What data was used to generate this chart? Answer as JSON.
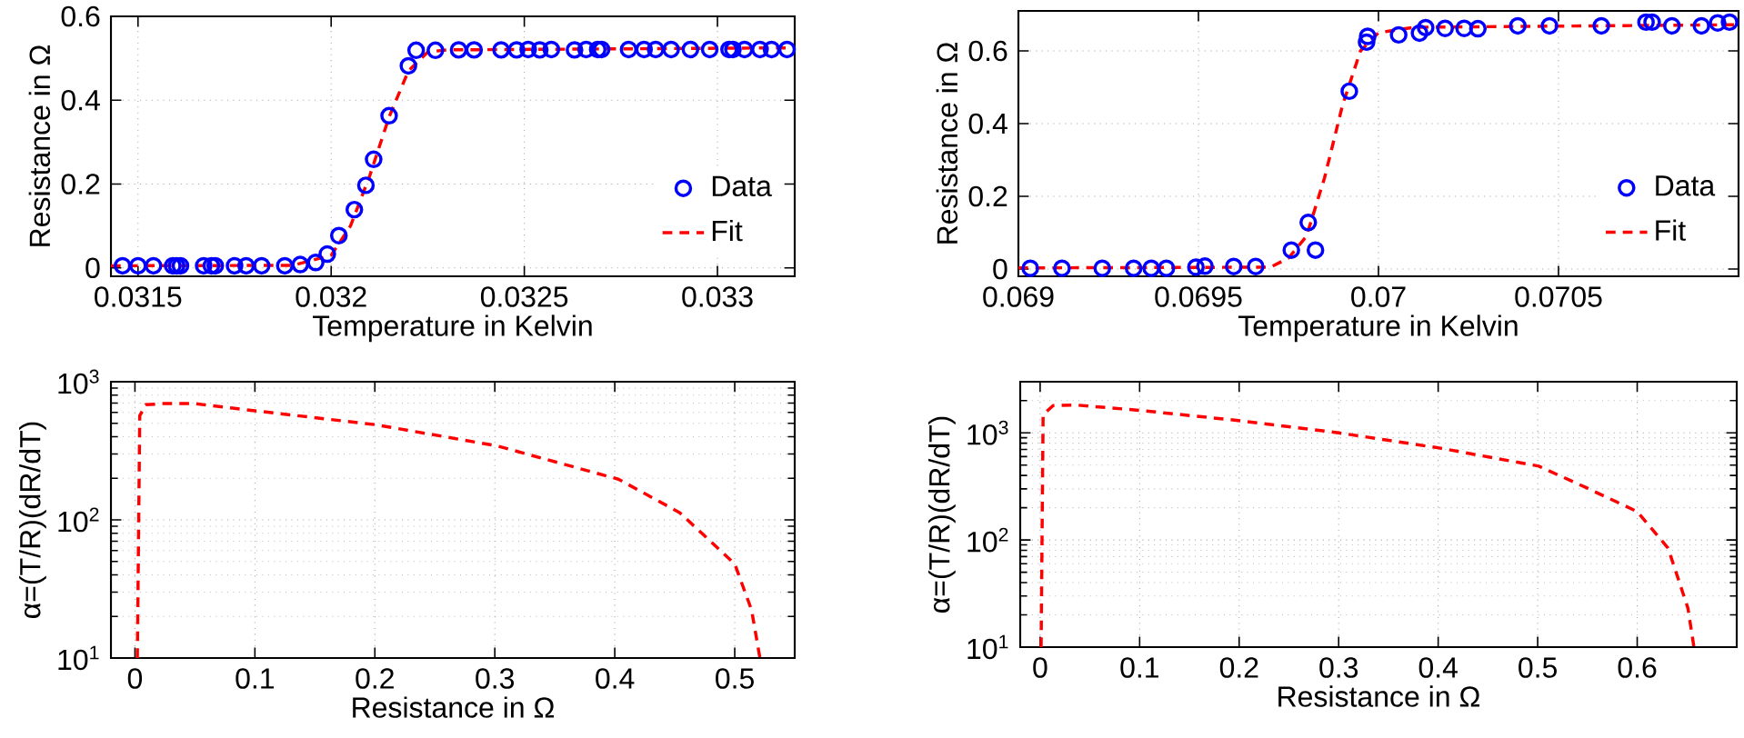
{
  "chart_data": [
    {
      "type": "scatter",
      "xlabel": "Temperature in Kelvin",
      "ylabel": "Resistance in Ω",
      "xlim": [
        0.03143,
        0.0332
      ],
      "ylim": [
        -0.02,
        0.6
      ],
      "xticks": [
        0.0315,
        0.032,
        0.0325,
        0.033
      ],
      "yticks": [
        0,
        0.2,
        0.4,
        0.6
      ],
      "grid": true,
      "legend": "bottom right",
      "series": [
        {
          "name": "Data",
          "color": "#0000ff",
          "marker": "circle",
          "x": [
            0.03146,
            0.0315,
            0.03154,
            0.03159,
            0.0316,
            0.03161,
            0.03167,
            0.03169,
            0.0317,
            0.03175,
            0.03178,
            0.03182,
            0.03188,
            0.03192,
            0.03196,
            0.03199,
            0.03202,
            0.03206,
            0.03209,
            0.03211,
            0.03215,
            0.0322,
            0.03222,
            0.03227,
            0.03233,
            0.03237,
            0.03244,
            0.03248,
            0.03251,
            0.03254,
            0.03257,
            0.03263,
            0.03266,
            0.03269,
            0.0327,
            0.03277,
            0.03281,
            0.03284,
            0.03288,
            0.03293,
            0.03298,
            0.03303,
            0.03304,
            0.03307,
            0.03311,
            0.03314,
            0.03318
          ],
          "values": [
            0.005,
            0.005,
            0.005,
            0.005,
            0.005,
            0.005,
            0.005,
            0.005,
            0.005,
            0.005,
            0.005,
            0.005,
            0.005,
            0.008,
            0.013,
            0.033,
            0.077,
            0.139,
            0.197,
            0.259,
            0.363,
            0.482,
            0.519,
            0.519,
            0.52,
            0.52,
            0.52,
            0.52,
            0.521,
            0.52,
            0.521,
            0.52,
            0.521,
            0.521,
            0.521,
            0.521,
            0.521,
            0.521,
            0.521,
            0.521,
            0.521,
            0.521,
            0.521,
            0.521,
            0.521,
            0.521,
            0.521
          ]
        },
        {
          "name": "Fit",
          "type": "line",
          "color": "#ff0000",
          "line_style": "dashed",
          "marker": "none",
          "x": [
            0.03143,
            0.0319,
            0.032,
            0.03205,
            0.0321,
            0.03215,
            0.0322,
            0.03225,
            0.0323,
            0.0332
          ],
          "values": [
            0.005,
            0.006,
            0.03,
            0.1,
            0.22,
            0.36,
            0.47,
            0.515,
            0.52,
            0.525
          ]
        }
      ]
    },
    {
      "type": "scatter",
      "xlabel": "Temperature in Kelvin",
      "ylabel": "Resistance in Ω",
      "xlim": [
        0.069,
        0.071
      ],
      "ylim": [
        -0.02,
        0.71
      ],
      "xticks": [
        0.069,
        0.0695,
        0.07,
        0.0705
      ],
      "yticks": [
        0,
        0.2,
        0.4,
        0.6
      ],
      "grid": true,
      "legend": "bottom right",
      "series": [
        {
          "name": "Data",
          "color": "#0000ff",
          "marker": "circle",
          "x": [
            0.069033,
            0.069121,
            0.069233,
            0.06932,
            0.069369,
            0.069411,
            0.069493,
            0.069518,
            0.069598,
            0.069659,
            0.069758,
            0.069805,
            0.069825,
            0.069919,
            0.069967,
            0.06997,
            0.070056,
            0.070114,
            0.070131,
            0.070185,
            0.070238,
            0.070276,
            0.070387,
            0.070475,
            0.070619,
            0.070743,
            0.07076,
            0.070815,
            0.070897,
            0.070942,
            0.070975
          ],
          "values": [
            0.002,
            0.002,
            0.002,
            0.002,
            0.002,
            0.002,
            0.005,
            0.008,
            0.007,
            0.007,
            0.052,
            0.128,
            0.052,
            0.489,
            0.624,
            0.64,
            0.644,
            0.649,
            0.664,
            0.662,
            0.662,
            0.661,
            0.669,
            0.669,
            0.669,
            0.679,
            0.679,
            0.669,
            0.669,
            0.677,
            0.679
          ]
        },
        {
          "name": "Fit",
          "type": "line",
          "color": "#ff0000",
          "line_style": "dashed",
          "marker": "none",
          "x": [
            0.069,
            0.0697,
            0.06975,
            0.0698,
            0.06985,
            0.0699,
            0.06995,
            0.07,
            0.0701,
            0.071
          ],
          "values": [
            0.003,
            0.005,
            0.03,
            0.09,
            0.25,
            0.45,
            0.6,
            0.65,
            0.665,
            0.672
          ]
        }
      ]
    },
    {
      "type": "line",
      "xlabel": "Resistance in Ω",
      "ylabel": "α=(T/R)(dR/dT)",
      "log": "y",
      "xlim": [
        -0.02,
        0.55
      ],
      "ylim": [
        10,
        1000
      ],
      "xticks": [
        0,
        0.1,
        0.2,
        0.3,
        0.4,
        0.5
      ],
      "yticks": [
        {
          "value": 10,
          "label": "10$^{1}$"
        },
        {
          "value": 100,
          "label": "10$^{2}$"
        },
        {
          "value": 1000,
          "label": "10$^{3}$"
        }
      ],
      "grid": true,
      "line_style": "dashed",
      "marker": "none",
      "series": [
        {
          "color": "#ff0000",
          "x": [
            0.002,
            0.004,
            0.009,
            0.024,
            0.049,
            0.1,
            0.201,
            0.302,
            0.403,
            0.454,
            0.5,
            0.514,
            0.521
          ],
          "values": [
            10,
            567,
            681,
            695,
            695,
            616,
            488,
            343,
            197,
            113,
            47.9,
            22.3,
            10
          ]
        }
      ]
    },
    {
      "type": "line",
      "xlabel": "Resistance in Ω",
      "ylabel": "α=(T/R)(dR/dT)",
      "log": "y",
      "xlim": [
        -0.02,
        0.7
      ],
      "ylim": [
        10,
        3000
      ],
      "xticks": [
        0,
        0.1,
        0.2,
        0.3,
        0.4,
        0.5,
        0.6
      ],
      "yticks": [
        {
          "value": 10,
          "label": "10$^{1}$"
        },
        {
          "value": 100,
          "label": "10$^{2}$"
        },
        {
          "value": 1000,
          "label": "10$^{3}$"
        }
      ],
      "grid": true,
      "line_style": "dashed",
      "marker": "none",
      "series": [
        {
          "color": "#ff0000",
          "x": [
            0.001,
            0.003,
            0.013,
            0.036,
            0.101,
            0.201,
            0.3,
            0.401,
            0.501,
            0.548,
            0.6,
            0.631,
            0.651,
            0.657
          ],
          "values": [
            10,
            1477,
            1795,
            1818,
            1618,
            1297,
            1000,
            722,
            489,
            310,
            184,
            84,
            23,
            10
          ]
        }
      ]
    }
  ]
}
